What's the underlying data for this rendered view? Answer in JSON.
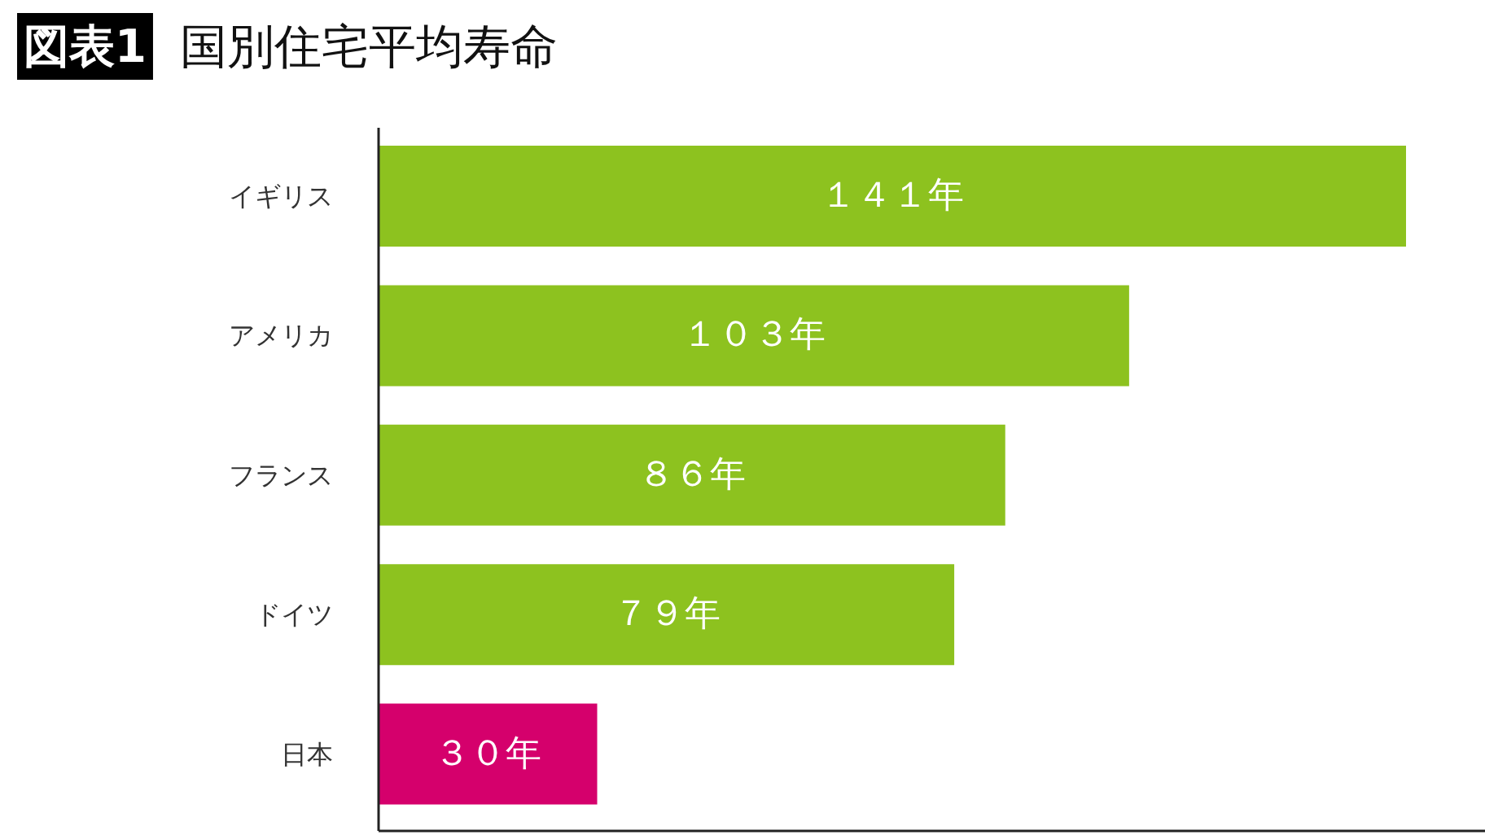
{
  "chart_data": {
    "type": "bar",
    "orientation": "horizontal",
    "title": "国別住宅平均寿命",
    "annotations": [
      "図表1"
    ],
    "categories": [
      "イギリス",
      "アメリカ",
      "フランス",
      "ドイツ",
      "日本"
    ],
    "values": [
      141,
      103,
      86,
      79,
      30
    ],
    "colors": [
      "#8dc21f",
      "#8dc21f",
      "#8dc21f",
      "#8dc21f",
      "#d5006c"
    ],
    "value_labels": [
      "１４１年",
      "１０３年",
      "８６年",
      "７９年",
      "３０年"
    ],
    "tick_labels": "y"
  }
}
